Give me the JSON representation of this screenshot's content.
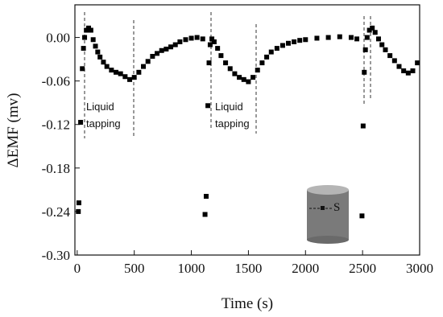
{
  "chart_data": {
    "type": "scatter",
    "x_label": "Time (s)",
    "y_label": "ΔEMF (mv)",
    "xlim": [
      -20,
      3000
    ],
    "ylim": [
      -0.3,
      0.045
    ],
    "xticks": [
      0,
      500,
      1000,
      1500,
      2000,
      2500,
      3000
    ],
    "yticks": [
      {
        "value": 0,
        "label": "0.00"
      },
      {
        "value": -0.06,
        "label": "-0.06"
      },
      {
        "value": -0.12,
        "label": "-0.12"
      },
      {
        "value": -0.18,
        "label": "-0.18"
      },
      {
        "value": -0.24,
        "label": "-0.24"
      },
      {
        "value": -0.3,
        "label": "-0.30"
      }
    ],
    "annotations": [
      {
        "lines": [
          "Liquid",
          "tapping"
        ]
      },
      {
        "lines": [
          "Liquid",
          "tapping"
        ]
      }
    ],
    "inset_label": "S",
    "series": [
      {
        "color": "#000000",
        "x": [
          10,
          15,
          30,
          45,
          55,
          65,
          80,
          100,
          120,
          140,
          160,
          180,
          200,
          230,
          260,
          300,
          340,
          380,
          420,
          460,
          500,
          540,
          580,
          620,
          660,
          700,
          740,
          780,
          820,
          860,
          900,
          950,
          1000,
          1050,
          1100,
          1120,
          1130,
          1145,
          1155,
          1165,
          1180,
          1200,
          1230,
          1260,
          1300,
          1340,
          1380,
          1420,
          1460,
          1500,
          1540,
          1580,
          1620,
          1660,
          1700,
          1750,
          1800,
          1850,
          1900,
          1950,
          2000,
          2100,
          2200,
          2300,
          2400,
          2450,
          2495,
          2505,
          2515,
          2525,
          2540,
          2560,
          2585,
          2610,
          2640,
          2670,
          2700,
          2740,
          2780,
          2820,
          2860,
          2900,
          2940,
          2980
        ],
        "values": [
          -0.24,
          -0.228,
          -0.117,
          -0.043,
          -0.015,
          0.0,
          0.01,
          0.013,
          0.01,
          -0.003,
          -0.012,
          -0.02,
          -0.027,
          -0.034,
          -0.04,
          -0.045,
          -0.048,
          -0.05,
          -0.054,
          -0.058,
          -0.055,
          -0.048,
          -0.04,
          -0.033,
          -0.026,
          -0.022,
          -0.018,
          -0.016,
          -0.013,
          -0.01,
          -0.006,
          -0.003,
          -0.001,
          0.0,
          -0.002,
          -0.244,
          -0.219,
          -0.094,
          -0.035,
          -0.01,
          -0.002,
          -0.006,
          -0.015,
          -0.025,
          -0.035,
          -0.043,
          -0.05,
          -0.055,
          -0.058,
          -0.061,
          -0.055,
          -0.045,
          -0.035,
          -0.027,
          -0.02,
          -0.015,
          -0.011,
          -0.008,
          -0.006,
          -0.004,
          -0.003,
          -0.001,
          0.0,
          0.001,
          0.0,
          -0.002,
          -0.246,
          -0.122,
          -0.048,
          -0.017,
          0.0,
          0.01,
          0.013,
          0.007,
          -0.002,
          -0.01,
          -0.017,
          -0.025,
          -0.032,
          -0.04,
          -0.046,
          -0.049,
          -0.046,
          -0.035
        ]
      }
    ]
  }
}
